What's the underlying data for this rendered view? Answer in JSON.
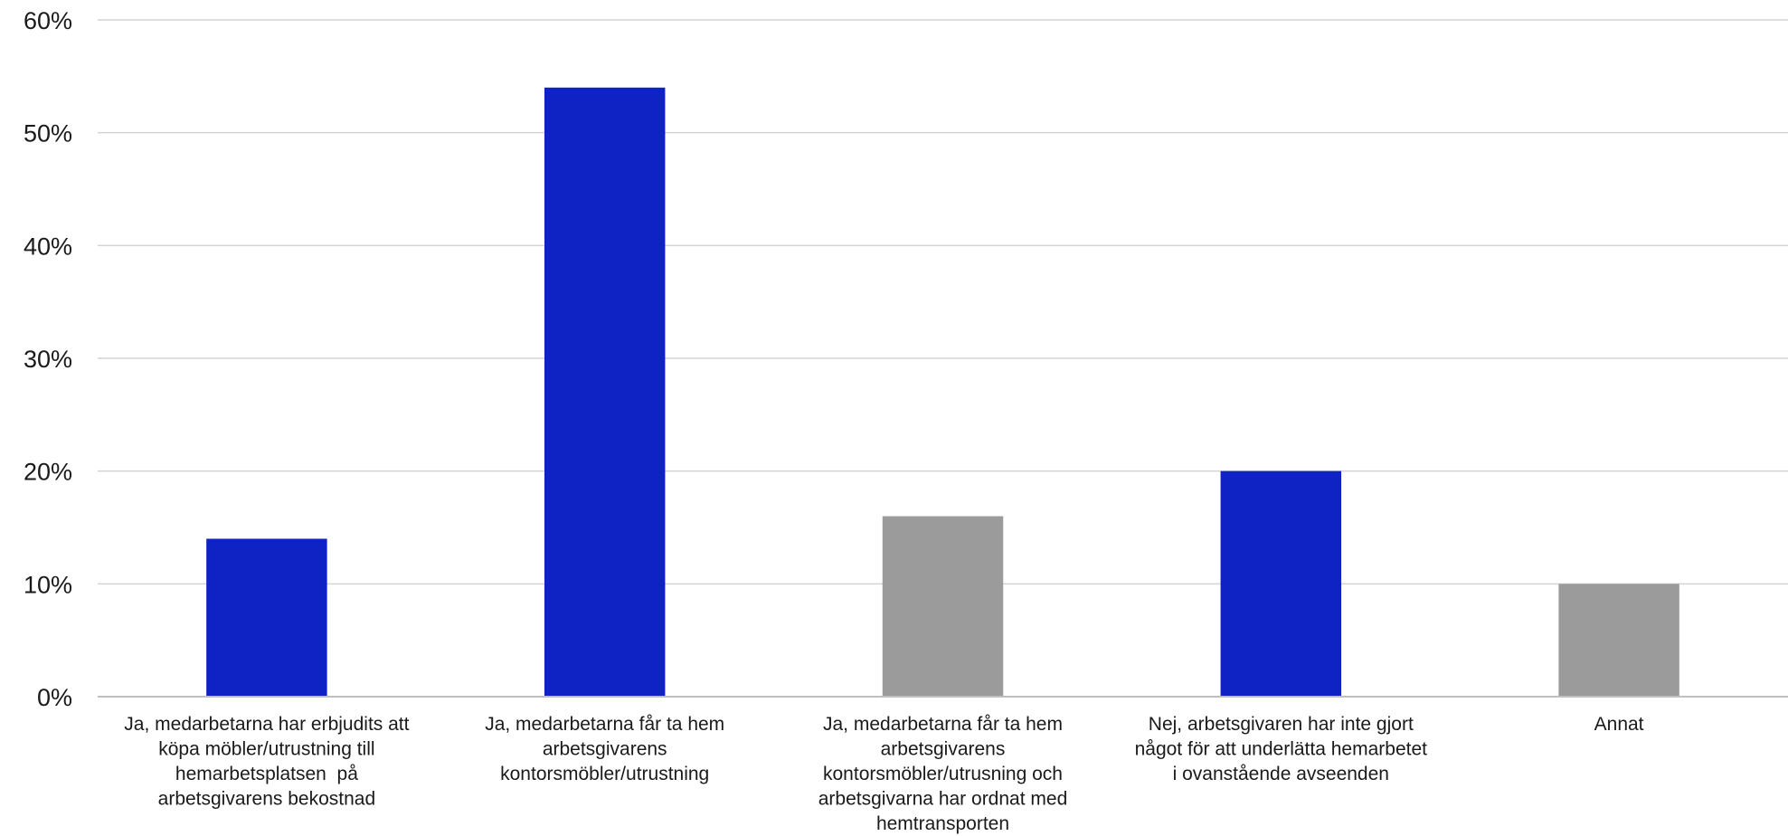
{
  "chart_data": {
    "type": "bar",
    "title": "",
    "xlabel": "",
    "ylabel": "",
    "ylim": [
      0,
      60
    ],
    "yticks": [
      0,
      10,
      20,
      30,
      40,
      50,
      60
    ],
    "ytick_labels": [
      "0%",
      "10%",
      "20%",
      "30%",
      "40%",
      "50%",
      "60%"
    ],
    "grid": true,
    "categories": [
      [
        "Ja, medarbetarna har erbjudits att",
        "köpa möbler/utrustning till",
        "hemarbetsplatsen  på",
        "arbetsgivarens bekostnad"
      ],
      [
        "Ja, medarbetarna får ta hem",
        "arbetsgivarens",
        "kontorsmöbler/utrustning"
      ],
      [
        "Ja, medarbetarna får ta hem",
        "arbetsgivarens",
        "kontorsmöbler/utrusning och",
        "arbetsgivarna har ordnat med",
        "hemtransporten"
      ],
      [
        "Nej, arbetsgivaren har inte gjort",
        "något för att underlätta hemarbetet",
        "i ovanstående avseenden"
      ],
      [
        "Annat"
      ]
    ],
    "values": [
      14,
      54,
      16,
      20,
      10
    ],
    "bar_colors": [
      "#0f22c3",
      "#0f22c3",
      "#9b9b9b",
      "#0f22c3",
      "#9b9b9b"
    ]
  }
}
